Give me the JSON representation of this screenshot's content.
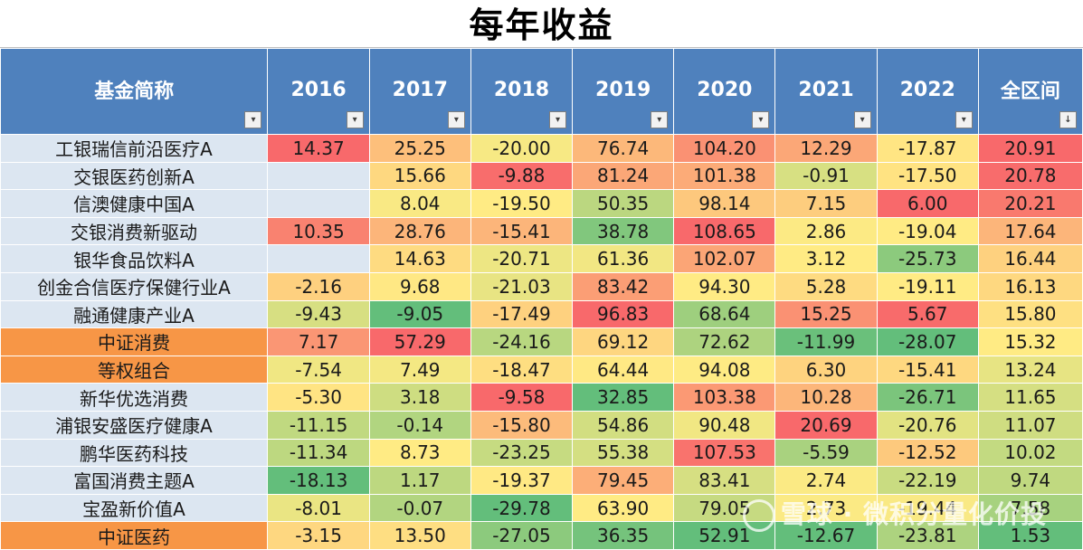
{
  "title": "每年收益",
  "headers": [
    "基金简称",
    "2016",
    "2017",
    "2018",
    "2019",
    "2020",
    "2021",
    "2022",
    "全区间"
  ],
  "header_icons": [
    "filter-dropdown-icon",
    "filter-dropdown-icon",
    "filter-dropdown-icon",
    "filter-dropdown-icon",
    "filter-dropdown-icon",
    "filter-dropdown-icon",
    "filter-dropdown-icon",
    "filter-dropdown-icon",
    "sort-descending-filter-icon"
  ],
  "colors": {
    "header_bg": "#4f81bd",
    "name_bg": "#dce6f1",
    "name_highlight": "#f79646",
    "scale_low": "#63be7b",
    "scale_mid": "#ffeb84",
    "scale_high": "#f8696b"
  },
  "rows": [
    {
      "name": "工银瑞信前沿医疗A",
      "highlight": false,
      "values": [
        "14.37",
        "25.25",
        "-20.00",
        "76.74",
        "104.20",
        "12.29",
        "-17.87",
        "20.91"
      ]
    },
    {
      "name": "交银医药创新A",
      "highlight": false,
      "values": [
        "",
        "15.66",
        "-9.88",
        "81.24",
        "101.38",
        "-0.91",
        "-17.50",
        "20.78"
      ]
    },
    {
      "name": "信澳健康中国A",
      "highlight": false,
      "values": [
        "",
        "8.04",
        "-19.50",
        "50.35",
        "98.14",
        "7.15",
        "6.00",
        "20.21"
      ]
    },
    {
      "name": "交银消费新驱动",
      "highlight": false,
      "values": [
        "10.35",
        "28.76",
        "-15.41",
        "38.78",
        "108.65",
        "2.86",
        "-19.04",
        "17.64"
      ]
    },
    {
      "name": "银华食品饮料A",
      "highlight": false,
      "values": [
        "",
        "14.63",
        "-20.71",
        "61.36",
        "102.07",
        "3.12",
        "-25.73",
        "16.44"
      ]
    },
    {
      "name": "创金合信医疗保健行业A",
      "highlight": false,
      "values": [
        "-2.16",
        "9.68",
        "-21.03",
        "83.42",
        "94.30",
        "5.28",
        "-19.11",
        "16.13"
      ]
    },
    {
      "name": "融通健康产业A",
      "highlight": false,
      "values": [
        "-9.43",
        "-9.05",
        "-17.49",
        "96.83",
        "68.64",
        "15.25",
        "5.67",
        "15.80"
      ]
    },
    {
      "name": "中证消费",
      "highlight": true,
      "values": [
        "7.17",
        "57.29",
        "-24.16",
        "69.12",
        "72.62",
        "-11.99",
        "-28.07",
        "15.32"
      ]
    },
    {
      "name": "等权组合",
      "highlight": true,
      "values": [
        "-7.54",
        "7.49",
        "-18.47",
        "64.44",
        "94.08",
        "6.30",
        "-15.41",
        "13.24"
      ]
    },
    {
      "name": "新华优选消费",
      "highlight": false,
      "values": [
        "-5.30",
        "3.18",
        "-9.58",
        "32.85",
        "103.38",
        "10.28",
        "-26.71",
        "11.65"
      ]
    },
    {
      "name": "浦银安盛医疗健康A",
      "highlight": false,
      "values": [
        "-11.15",
        "-0.14",
        "-15.80",
        "54.86",
        "90.48",
        "20.69",
        "-20.76",
        "11.07"
      ]
    },
    {
      "name": "鹏华医药科技",
      "highlight": false,
      "values": [
        "-11.34",
        "8.73",
        "-23.25",
        "55.38",
        "107.53",
        "-5.59",
        "-12.52",
        "10.02"
      ]
    },
    {
      "name": "富国消费主题A",
      "highlight": false,
      "values": [
        "-18.13",
        "1.17",
        "-19.37",
        "79.45",
        "83.41",
        "2.74",
        "-22.19",
        "9.74"
      ]
    },
    {
      "name": "宝盈新价值A",
      "highlight": false,
      "values": [
        "-8.01",
        "-0.07",
        "-29.78",
        "63.90",
        "79.05",
        "2.73",
        "-19.44",
        "7.58"
      ]
    },
    {
      "name": "中证医药",
      "highlight": true,
      "values": [
        "-3.15",
        "13.50",
        "-27.05",
        "36.35",
        "52.91",
        "-12.67",
        "-23.81",
        "1.53"
      ]
    }
  ],
  "watermark": "雪球 · 微积分量化价投"
}
